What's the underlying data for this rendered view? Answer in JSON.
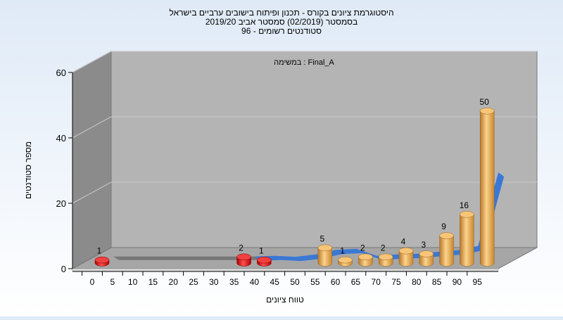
{
  "chart_data": {
    "type": "bar",
    "title_lines": [
      "היסטוגרמת ציונים בקורס - תכנון ופיתוח בישובים ערביים בישראל",
      "בסמסטר  (02/2019)  סמסטר אביב 2019/20",
      "סטודנטים רשומים - 96"
    ],
    "annotation": "במשימה : Final_A",
    "xlabel": "טווח ציונים",
    "ylabel": "מספר סטודנטים",
    "ylim": [
      0,
      60
    ],
    "yticks": [
      0,
      20,
      40,
      60
    ],
    "categories": [
      "0",
      "5",
      "10",
      "15",
      "20",
      "25",
      "30",
      "35",
      "40",
      "45",
      "50",
      "55",
      "60",
      "65",
      "70",
      "75",
      "80",
      "85",
      "90",
      "95"
    ],
    "bars": [
      {
        "x": 0,
        "value": 1,
        "color": "red"
      },
      {
        "x": 35,
        "value": 2,
        "color": "red"
      },
      {
        "x": 40,
        "value": 1,
        "color": "red"
      },
      {
        "x": 55,
        "value": 5,
        "color": "gold"
      },
      {
        "x": 60,
        "value": 1,
        "color": "gold"
      },
      {
        "x": 65,
        "value": 2,
        "color": "gold"
      },
      {
        "x": 70,
        "value": 2,
        "color": "gold"
      },
      {
        "x": 75,
        "value": 4,
        "color": "gold"
      },
      {
        "x": 80,
        "value": 3,
        "color": "gold"
      },
      {
        "x": 85,
        "value": 9,
        "color": "gold"
      },
      {
        "x": 90,
        "value": 16,
        "color": "gold"
      },
      {
        "x": 95,
        "value": 50,
        "color": "gold"
      }
    ],
    "colors": {
      "red": "#e01010",
      "gold": "#e8a84a",
      "curve": "#3a78d4",
      "curve_flat": "#777777"
    },
    "grid": true,
    "legend": "none"
  }
}
